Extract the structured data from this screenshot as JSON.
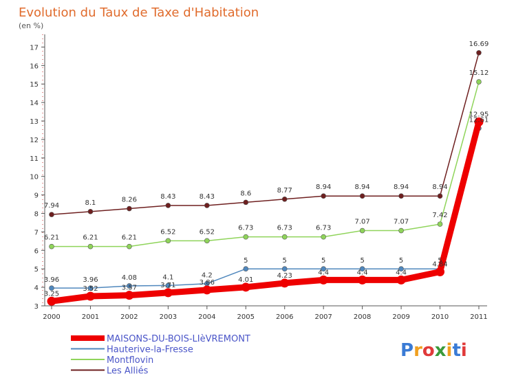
{
  "chart_data": {
    "type": "line",
    "title": "Evolution du Taux de Taxe d'Habitation",
    "subtitle": "(en %)",
    "x": [
      "2000",
      "2001",
      "2002",
      "2003",
      "2004",
      "2005",
      "2006",
      "2007",
      "2008",
      "2009",
      "2010",
      "2011"
    ],
    "yticks": [
      "3",
      "4",
      "5",
      "6",
      "7",
      "8",
      "9",
      "10",
      "11",
      "12",
      "13",
      "14",
      "15",
      "16",
      "17"
    ],
    "ylim": [
      3,
      17.5
    ],
    "grid": false,
    "legend_position": "bottom-left",
    "series": [
      {
        "name": "MAISONS-DU-BOIS-LIèVREMONT",
        "color": "#ee0000",
        "values": [
          3.25,
          3.52,
          3.57,
          3.71,
          3.86,
          4.01,
          4.23,
          4.4,
          4.4,
          4.4,
          4.84,
          12.95
        ],
        "labels": [
          "3.25",
          "3.52",
          "3.57",
          "3.71",
          "3.86",
          "4.01",
          "4.23",
          "4.4",
          "4.4",
          "4.4",
          "4.84",
          "12.95"
        ]
      },
      {
        "name": "Hauterive-la-Fresse",
        "color": "#4f87bd",
        "values": [
          3.96,
          3.96,
          4.08,
          4.1,
          4.2,
          5,
          5,
          5,
          5,
          5,
          5,
          12.61
        ],
        "labels": [
          "3.96",
          "3.96",
          "4.08",
          "4.1",
          "4.2",
          "5",
          "5",
          "5",
          "5",
          "5",
          "5",
          "12.61"
        ]
      },
      {
        "name": "Montflovin",
        "color": "#8fd45a",
        "values": [
          6.21,
          6.21,
          6.21,
          6.52,
          6.52,
          6.73,
          6.73,
          6.73,
          7.07,
          7.07,
          7.42,
          15.12
        ],
        "labels": [
          "6.21",
          "6.21",
          "6.21",
          "6.52",
          "6.52",
          "6.73",
          "6.73",
          "6.73",
          "7.07",
          "7.07",
          "7.42",
          "15.12"
        ]
      },
      {
        "name": "Les Alliés",
        "color": "#6e1f1f",
        "values": [
          7.94,
          8.1,
          8.26,
          8.43,
          8.43,
          8.6,
          8.77,
          8.94,
          8.94,
          8.94,
          8.94,
          16.69
        ],
        "labels": [
          "7.94",
          "8.1",
          "8.26",
          "8.43",
          "8.43",
          "8.6",
          "8.77",
          "8.94",
          "8.94",
          "8.94",
          "8.94",
          "16.69"
        ]
      }
    ]
  },
  "logo": {
    "text": "Proxiti"
  }
}
